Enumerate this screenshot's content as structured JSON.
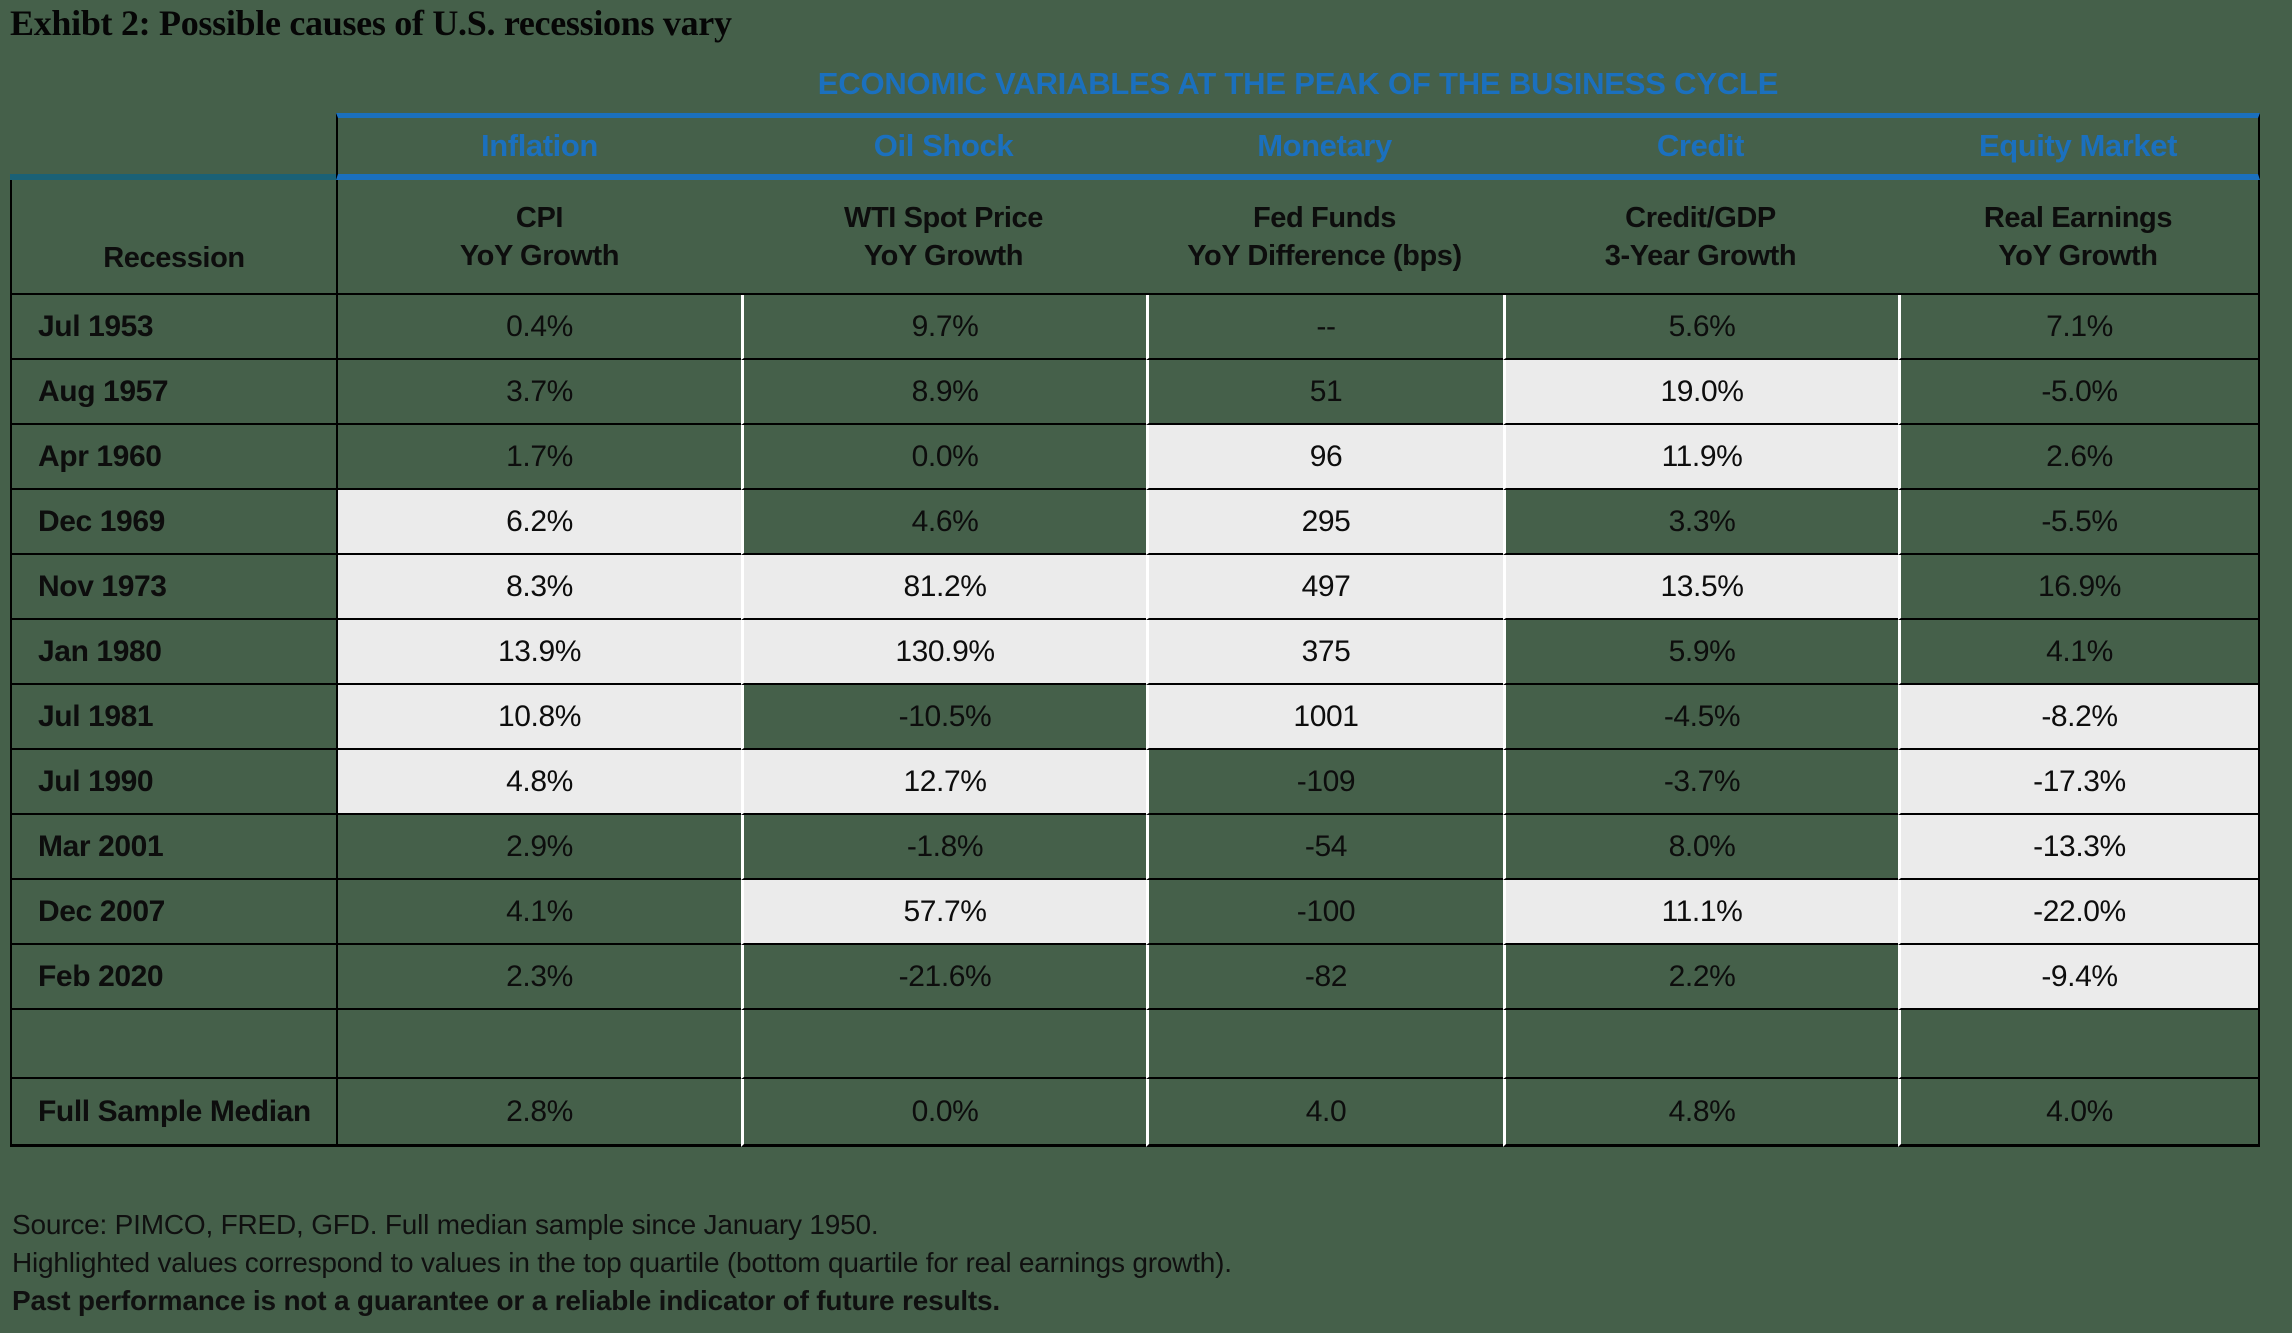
{
  "title": "Exhibt 2: Possible causes of U.S. recessions vary",
  "colors": {
    "background": "#45604A",
    "highlight": "#EBEBEB",
    "accent_blue": "#1B70BE",
    "divider_teal": "#1A6176",
    "grid_black": "#000000",
    "grid_white": "#FFFFFF"
  },
  "chart_data": {
    "type": "table",
    "title": "ECONOMIC VARIABLES AT THE PEAK OF THE BUSINESS CYCLE",
    "category_groups": [
      "Inflation",
      "Oil Shock",
      "Monetary",
      "Credit",
      "Equity Market"
    ],
    "columns": [
      {
        "line1": "Recession"
      },
      {
        "line1": "CPI",
        "line2": "YoY Growth"
      },
      {
        "line1": "WTI Spot Price",
        "line2": "YoY Growth"
      },
      {
        "line1": "Fed Funds",
        "line2": "YoY Difference (bps)"
      },
      {
        "line1": "Credit/GDP",
        "line2": "3-Year Growth"
      },
      {
        "line1": "Real Earnings",
        "line2": "YoY Growth"
      }
    ],
    "rows": [
      {
        "label": "Jul 1953",
        "values": [
          "0.4%",
          "9.7%",
          "--",
          "5.6%",
          "7.1%"
        ],
        "highlights": [
          0,
          0,
          0,
          0,
          0
        ]
      },
      {
        "label": "Aug 1957",
        "values": [
          "3.7%",
          "8.9%",
          "51",
          "19.0%",
          "-5.0%"
        ],
        "highlights": [
          0,
          0,
          0,
          1,
          0
        ]
      },
      {
        "label": "Apr 1960",
        "values": [
          "1.7%",
          "0.0%",
          "96",
          "11.9%",
          "2.6%"
        ],
        "highlights": [
          0,
          0,
          1,
          1,
          0
        ]
      },
      {
        "label": "Dec 1969",
        "values": [
          "6.2%",
          "4.6%",
          "295",
          "3.3%",
          "-5.5%"
        ],
        "highlights": [
          1,
          0,
          1,
          0,
          0
        ]
      },
      {
        "label": "Nov 1973",
        "values": [
          "8.3%",
          "81.2%",
          "497",
          "13.5%",
          "16.9%"
        ],
        "highlights": [
          1,
          1,
          1,
          1,
          0
        ]
      },
      {
        "label": "Jan 1980",
        "values": [
          "13.9%",
          "130.9%",
          "375",
          "5.9%",
          "4.1%"
        ],
        "highlights": [
          1,
          1,
          1,
          0,
          0
        ]
      },
      {
        "label": "Jul 1981",
        "values": [
          "10.8%",
          "-10.5%",
          "1001",
          "-4.5%",
          "-8.2%"
        ],
        "highlights": [
          1,
          0,
          1,
          0,
          1
        ]
      },
      {
        "label": "Jul 1990",
        "values": [
          "4.8%",
          "12.7%",
          "-109",
          "-3.7%",
          "-17.3%"
        ],
        "highlights": [
          1,
          1,
          0,
          0,
          1
        ]
      },
      {
        "label": "Mar 2001",
        "values": [
          "2.9%",
          "-1.8%",
          "-54",
          "8.0%",
          "-13.3%"
        ],
        "highlights": [
          0,
          0,
          0,
          0,
          1
        ]
      },
      {
        "label": "Dec 2007",
        "values": [
          "4.1%",
          "57.7%",
          "-100",
          "11.1%",
          "-22.0%"
        ],
        "highlights": [
          0,
          1,
          0,
          1,
          1
        ]
      },
      {
        "label": "Feb 2020",
        "values": [
          "2.3%",
          "-21.6%",
          "-82",
          "2.2%",
          "-9.4%"
        ],
        "highlights": [
          0,
          0,
          0,
          0,
          1
        ]
      }
    ],
    "median": {
      "label": "Full Sample Median",
      "values": [
        "2.8%",
        "0.0%",
        "4.0",
        "4.8%",
        "4.0%"
      ]
    }
  },
  "footnotes": [
    "Source: PIMCO, FRED, GFD. Full median sample since January 1950.",
    "Highlighted values correspond to values in the top quartile (bottom quartile for real earnings growth).",
    "Past performance is not a guarantee or a reliable indicator of future results."
  ]
}
